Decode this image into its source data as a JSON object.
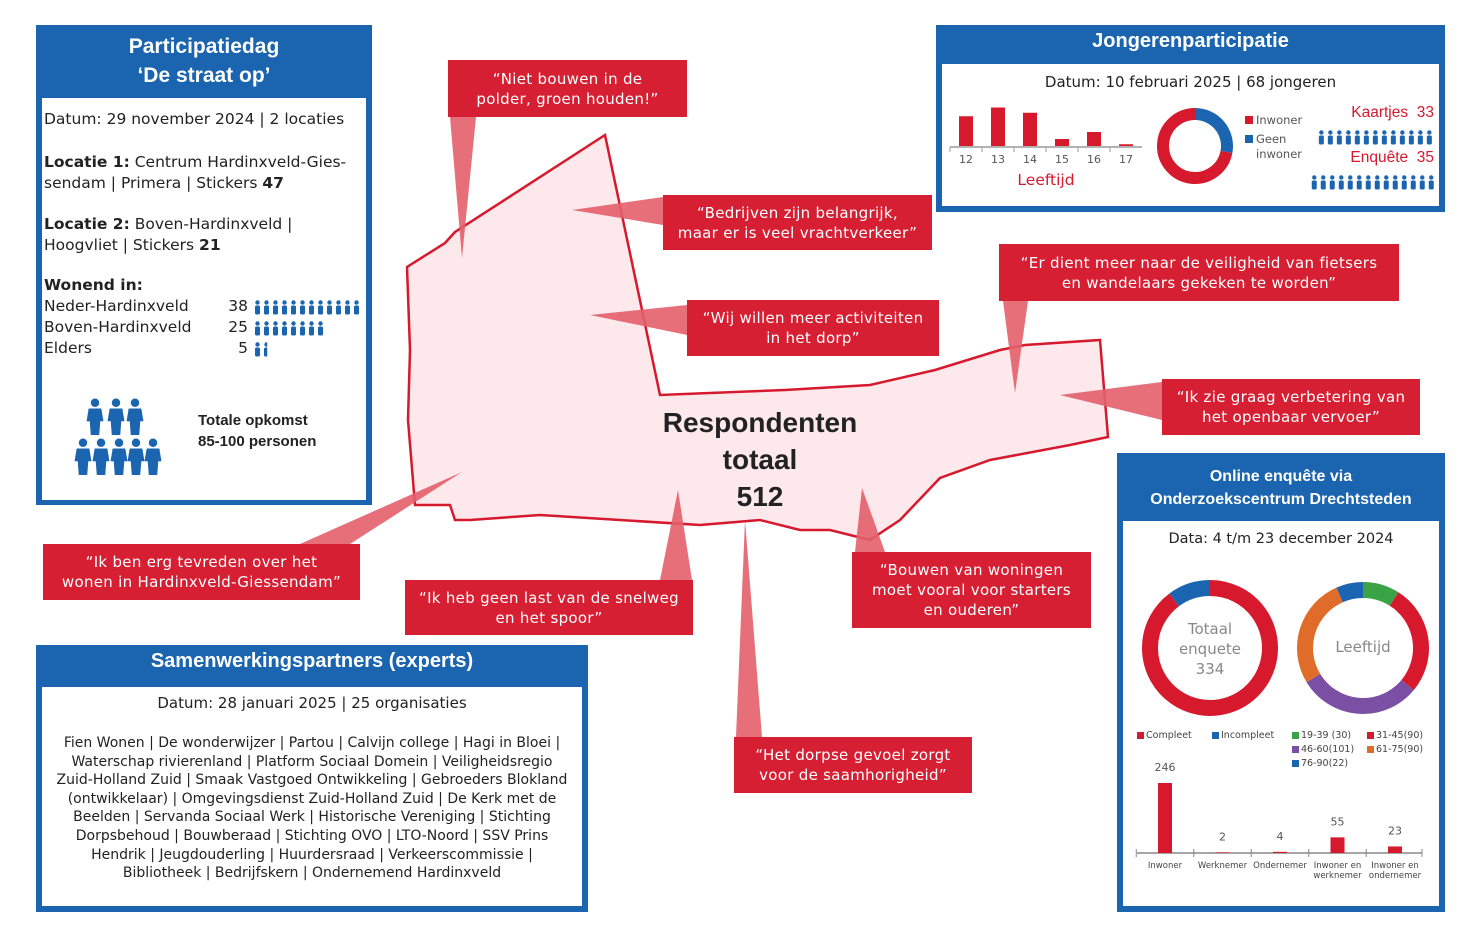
{
  "participatiedag": {
    "title": [
      "Participatiedag",
      "‘De straat op’"
    ],
    "datum": "Datum: 29 november 2024 | 2 locaties",
    "locaties": [
      {
        "label": "Locatie 1:",
        "lines": [
          "Centrum Hardinxveld-Gies-",
          "sendam | Primera | Stickers"
        ],
        "stickers": 47
      },
      {
        "label": "Locatie 2:",
        "lines": [
          "Boven-Hardinxveld |",
          "Hoogvliet | Stickers"
        ],
        "stickers": 21
      }
    ],
    "wonend_in": {
      "title": "Wonend in:",
      "rows": [
        {
          "name": "Neder-Hardinxveld",
          "value": 38
        },
        {
          "name": "Boven-Hardinxveld",
          "value": 25
        },
        {
          "name": "Elders",
          "value": 5
        }
      ]
    },
    "totale_opkomst": [
      "Totale opkomst",
      "85-100 personen"
    ]
  },
  "jongeren": {
    "title": "Jongerenparticipatie",
    "datum": "Datum: 10 februari 2025 | 68 jongeren",
    "leeftijd_chart": {
      "type": "bar",
      "categories": [
        "12",
        "13",
        "14",
        "15",
        "16",
        "17"
      ],
      "values": [
        17,
        22,
        19,
        4,
        8,
        1
      ],
      "x_label": "Leeftijd",
      "color": "#d7192d"
    },
    "woonplaats_chart": {
      "type": "donut",
      "categories": [
        "Inwoner",
        "Geen inwoner"
      ],
      "values": [
        49,
        19
      ],
      "colors": [
        "#d7192d",
        "#1b64b0"
      ]
    },
    "kaartjes": {
      "label": "Kaartjes",
      "value": 33
    },
    "enquete": {
      "label": "Enquête",
      "value": 35
    }
  },
  "respondenten": {
    "lines": [
      "Respondenten",
      "totaal"
    ],
    "value": 512
  },
  "quotes": [
    {
      "lines": [
        "“Niet bouwen in de",
        "polder, groen houden!”"
      ]
    },
    {
      "lines": [
        "“Bedrijven zijn belangrijk,",
        "maar er is veel vrachtverkeer”"
      ]
    },
    {
      "lines": [
        "“Er dient meer naar de veiligheid van fietsers",
        "en wandelaars gekeken te worden”"
      ]
    },
    {
      "lines": [
        "“Wij willen meer activiteiten",
        "in het dorp”"
      ]
    },
    {
      "lines": [
        "“Ik zie graag verbetering van",
        "het openbaar vervoer”"
      ]
    },
    {
      "lines": [
        "“Ik ben erg tevreden over het",
        "wonen in Hardinxveld-Giessendam”"
      ]
    },
    {
      "lines": [
        "“Ik heb geen last van de snelweg",
        "en het spoor”"
      ]
    },
    {
      "lines": [
        "“Het dorpse gevoel zorgt",
        "voor de saamhorigheid”"
      ]
    },
    {
      "lines": [
        "“Bouwen van woningen",
        "moet vooral voor starters",
        "en ouderen”"
      ]
    }
  ],
  "samenwerking": {
    "title": "Samenwerkingspartners (experts)",
    "datum": "Datum: 28 januari 2025 | 25 organisaties",
    "lines": [
      "Fien Wonen | De wonderwijzer | Partou  | Calvijn college | Hagi in Bloei |",
      "Waterschap rivierenland | Platform Sociaal Domein | Veiligheidsregio",
      "Zuid-Holland Zuid | Smaak Vastgoed Ontwikkeling | Gebroeders Blokland",
      "(ontwikkelaar) | Omgevingsdienst Zuid-Holland Zuid | De Kerk met de",
      "Beelden | Servanda Sociaal Werk | Historische Vereniging | Stichting",
      "Dorpsbehoud  | Bouwberaad | Stichting OVO  | LTO-Noord | SSV Prins",
      "Hendrik | Jeugdouderling | Huurdersraad | Verkeerscommissie |",
      "Bibliotheek | Bedrijfskern | Ondernemend Hardinxveld"
    ]
  },
  "online": {
    "title": [
      "Online enquête via",
      "Onderzoekscentrum Drechtsteden"
    ],
    "datum": "Data: 4 t/m 23 december 2024",
    "status_chart": {
      "type": "donut",
      "center": [
        "Totaal",
        "enquete"
      ],
      "total": 334,
      "categories": [
        "Compleet",
        "Incompleet"
      ],
      "values": [
        300,
        34
      ],
      "colors": [
        "#d7192d",
        "#1b64b0"
      ]
    },
    "leeftijd_chart": {
      "type": "donut",
      "center": [
        "Leeftijd"
      ],
      "categories": [
        "19-39 (30)",
        "31-45(90)",
        "46-60(101)",
        "61-75(90)",
        "76-90(22)"
      ],
      "values": [
        30,
        90,
        101,
        90,
        22
      ],
      "colors": [
        "#3aa346",
        "#d7192d",
        "#7b4fa3",
        "#e06c2a",
        "#1b64b0"
      ]
    },
    "rol_chart": {
      "type": "bar",
      "categories": [
        "Inwoner",
        "Werknemer",
        "Ondernemer",
        "Inwoner en werknemer",
        "Inwoner en ondernemer"
      ],
      "values": [
        246,
        2,
        4,
        55,
        23
      ],
      "color": "#d7192d"
    }
  }
}
